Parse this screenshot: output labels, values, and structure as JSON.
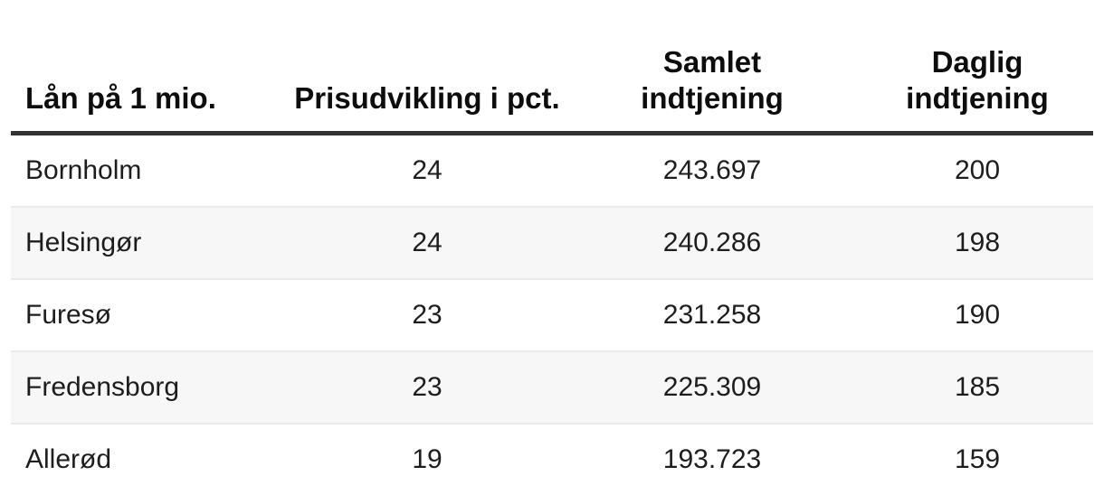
{
  "table": {
    "columns": [
      "Lån på 1 mio.",
      "Prisudvikling i pct.",
      "Samlet\nindtjening",
      "Daglig\nindtjening"
    ],
    "rows": [
      [
        "Bornholm",
        "24",
        "243.697",
        "200"
      ],
      [
        "Helsingør",
        "24",
        "240.286",
        "198"
      ],
      [
        "Furesø",
        "23",
        "231.258",
        "190"
      ],
      [
        "Fredensborg",
        "23",
        "225.309",
        "185"
      ],
      [
        "Allerød",
        "19",
        "193.723",
        "159"
      ]
    ]
  },
  "colors": {
    "header_rule": "#333333",
    "row_separator": "#eaeaea",
    "zebra_stripe": "#f7f7f7",
    "header_text": "#0d0d0d",
    "body_text": "#1d1d1d",
    "background": "#ffffff"
  },
  "chart_data": {
    "type": "table",
    "title": "",
    "columns": [
      "Lån på 1 mio.",
      "Prisudvikling i pct.",
      "Samlet indtjening",
      "Daglig indtjening"
    ],
    "rows": [
      {
        "kommune": "Bornholm",
        "prisudvikling_pct": 24,
        "samlet_indtjening": 243697,
        "daglig_indtjening": 200
      },
      {
        "kommune": "Helsingør",
        "prisudvikling_pct": 24,
        "samlet_indtjening": 240286,
        "daglig_indtjening": 198
      },
      {
        "kommune": "Furesø",
        "prisudvikling_pct": 23,
        "samlet_indtjening": 231258,
        "daglig_indtjening": 190
      },
      {
        "kommune": "Fredensborg",
        "prisudvikling_pct": 23,
        "samlet_indtjening": 225309,
        "daglig_indtjening": 185
      },
      {
        "kommune": "Allerød",
        "prisudvikling_pct": 19,
        "samlet_indtjening": 193723,
        "daglig_indtjening": 159
      }
    ],
    "layout": "zebra-striped table, first column left-aligned, other columns centered, thick rule under header"
  }
}
